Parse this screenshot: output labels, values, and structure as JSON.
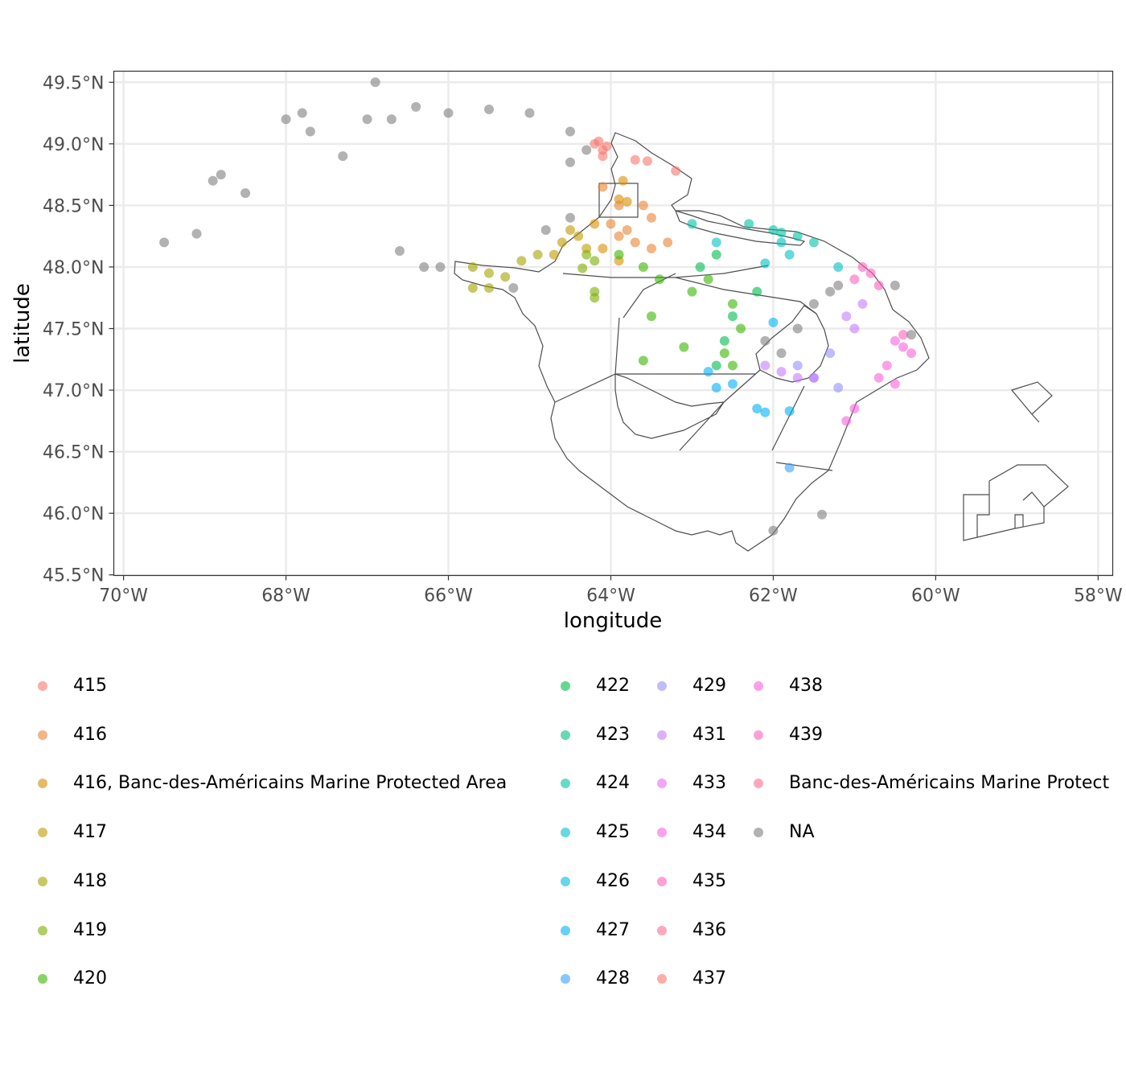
{
  "map": {
    "xlabel": "longitude",
    "ylabel": "latitude",
    "x_ticks": [
      {
        "lon": -70,
        "label": "70°W"
      },
      {
        "lon": -68,
        "label": "68°W"
      },
      {
        "lon": -66,
        "label": "66°W"
      },
      {
        "lon": -64,
        "label": "64°W"
      },
      {
        "lon": -62,
        "label": "62°W"
      },
      {
        "lon": -60,
        "label": "60°W"
      },
      {
        "lon": -58,
        "label": "58°W"
      }
    ],
    "y_ticks": [
      {
        "lat": 49.5,
        "label": "49.5°N"
      },
      {
        "lat": 49.0,
        "label": "49.0°N"
      },
      {
        "lat": 48.5,
        "label": "48.5°N"
      },
      {
        "lat": 48.0,
        "label": "48.0°N"
      },
      {
        "lat": 47.5,
        "label": "47.5°N"
      },
      {
        "lat": 47.0,
        "label": "47.0°N"
      },
      {
        "lat": 46.5,
        "label": "46.5°N"
      },
      {
        "lat": 46.0,
        "label": "46.0°N"
      },
      {
        "lat": 45.5,
        "label": "45.5°N"
      }
    ],
    "xlim": [
      -70.12,
      -57.82
    ],
    "ylim": [
      45.495,
      49.59
    ],
    "panel_background": "#ffffff",
    "grid": true,
    "grid_color": "#ebebeb",
    "outline_color": "#4d4d4d"
  },
  "legend": {
    "placement": "bottom",
    "columns": [
      [
        {
          "label": "415",
          "color": "#F8766D"
        },
        {
          "label": "416",
          "color": "#EA8331"
        },
        {
          "label": "416, Banc-des-Américains Marine Protected Area",
          "color": "#D89000"
        },
        {
          "label": "417",
          "color": "#C09B00"
        },
        {
          "label": "418",
          "color": "#A3A500"
        },
        {
          "label": "419",
          "color": "#7CAE00"
        },
        {
          "label": "420",
          "color": "#39B600"
        }
      ],
      [
        {
          "label": "422",
          "color": "#00BB4E"
        },
        {
          "label": "423",
          "color": "#00BF7D"
        },
        {
          "label": "424",
          "color": "#00C1A3"
        },
        {
          "label": "425",
          "color": "#00BFC4"
        },
        {
          "label": "426",
          "color": "#00BAE0"
        },
        {
          "label": "427",
          "color": "#00B0F6"
        },
        {
          "label": "428",
          "color": "#35A2FF"
        }
      ],
      [
        {
          "label": "429",
          "color": "#9590FF"
        },
        {
          "label": "431",
          "color": "#C77CFF"
        },
        {
          "label": "433",
          "color": "#E76BF3"
        },
        {
          "label": "434",
          "color": "#FA62DB"
        },
        {
          "label": "435",
          "color": "#FF62BC"
        },
        {
          "label": "436",
          "color": "#FF6C91"
        },
        {
          "label": "437",
          "color": "#F8766D"
        }
      ],
      [
        {
          "label": "438",
          "color": "#FA62DB"
        },
        {
          "label": "439",
          "color": "#FF62BC"
        },
        {
          "label": "Banc-des-Américains Marine Protect",
          "color": "#FF6C91"
        },
        {
          "label": "NA",
          "color": "#7F7F7F"
        }
      ]
    ]
  },
  "chart_data": {
    "type": "scatter",
    "xlabel": "longitude",
    "ylabel": "latitude",
    "xlim": [
      -70.12,
      -57.82
    ],
    "ylim": [
      45.495,
      49.59
    ],
    "grid": true,
    "legend_position": "bottom",
    "series": [
      {
        "name": "415",
        "color": "#F8766D",
        "points": [
          [
            -64.2,
            49.0
          ],
          [
            -64.1,
            48.95
          ],
          [
            -64.15,
            49.02
          ],
          [
            -63.7,
            48.87
          ],
          [
            -63.55,
            48.86
          ],
          [
            -63.2,
            48.78
          ],
          [
            -64.1,
            48.9
          ],
          [
            -64.05,
            48.98
          ]
        ]
      },
      {
        "name": "416",
        "color": "#EA8331",
        "points": [
          [
            -64.1,
            48.65
          ],
          [
            -63.9,
            48.5
          ],
          [
            -63.6,
            48.5
          ],
          [
            -63.5,
            48.4
          ],
          [
            -63.8,
            48.3
          ],
          [
            -63.7,
            48.2
          ],
          [
            -63.9,
            48.25
          ],
          [
            -63.5,
            48.15
          ],
          [
            -63.3,
            48.2
          ],
          [
            -64.0,
            48.35
          ]
        ]
      },
      {
        "name": "416, Banc-des-Américains Marine Protected Area",
        "color": "#D89000",
        "points": [
          [
            -63.9,
            48.55
          ],
          [
            -63.8,
            48.53
          ],
          [
            -63.85,
            48.7
          ],
          [
            -64.2,
            48.35
          ],
          [
            -63.9,
            48.05
          ],
          [
            -64.1,
            48.15
          ]
        ]
      },
      {
        "name": "417",
        "color": "#C09B00",
        "points": [
          [
            -64.6,
            48.2
          ],
          [
            -64.4,
            48.25
          ],
          [
            -64.5,
            48.3
          ],
          [
            -64.7,
            48.1
          ],
          [
            -64.3,
            48.15
          ]
        ]
      },
      {
        "name": "418",
        "color": "#A3A500",
        "points": [
          [
            -65.7,
            48.0
          ],
          [
            -65.5,
            47.95
          ],
          [
            -65.3,
            47.92
          ],
          [
            -65.7,
            47.83
          ],
          [
            -65.5,
            47.83
          ],
          [
            -64.9,
            48.1
          ],
          [
            -65.1,
            48.05
          ]
        ]
      },
      {
        "name": "419",
        "color": "#7CAE00",
        "points": [
          [
            -64.3,
            48.1
          ],
          [
            -64.2,
            48.05
          ],
          [
            -64.35,
            47.99
          ],
          [
            -64.2,
            47.8
          ],
          [
            -64.2,
            47.75
          ]
        ]
      },
      {
        "name": "420",
        "color": "#39B600",
        "points": [
          [
            -63.9,
            48.1
          ],
          [
            -63.6,
            48.0
          ],
          [
            -63.4,
            47.9
          ],
          [
            -63.0,
            47.8
          ],
          [
            -62.8,
            47.9
          ],
          [
            -62.5,
            47.7
          ],
          [
            -62.6,
            47.3
          ],
          [
            -62.5,
            47.2
          ],
          [
            -62.4,
            47.5
          ],
          [
            -63.1,
            47.35
          ],
          [
            -63.6,
            47.24
          ],
          [
            -63.5,
            47.6
          ]
        ]
      },
      {
        "name": "422",
        "color": "#00BB4E",
        "points": [
          [
            -62.9,
            48.0
          ],
          [
            -62.7,
            48.1
          ],
          [
            -62.5,
            47.6
          ],
          [
            -62.2,
            47.8
          ],
          [
            -62.6,
            47.4
          ],
          [
            -62.7,
            47.2
          ]
        ]
      },
      {
        "name": "424",
        "color": "#00C1A3",
        "points": [
          [
            -62.0,
            48.3
          ],
          [
            -61.9,
            48.28
          ],
          [
            -61.7,
            48.25
          ],
          [
            -61.5,
            48.2
          ],
          [
            -63.0,
            48.35
          ],
          [
            -62.3,
            48.35
          ]
        ]
      },
      {
        "name": "425",
        "color": "#00BFC4",
        "points": [
          [
            -61.9,
            48.2
          ],
          [
            -61.8,
            48.1
          ],
          [
            -62.1,
            48.03
          ],
          [
            -61.2,
            48.0
          ],
          [
            -62.7,
            48.2
          ]
        ]
      },
      {
        "name": "427",
        "color": "#00B0F6",
        "points": [
          [
            -62.8,
            47.15
          ],
          [
            -62.7,
            47.02
          ],
          [
            -62.5,
            47.05
          ],
          [
            -62.2,
            46.85
          ],
          [
            -62.1,
            46.82
          ],
          [
            -61.8,
            46.83
          ],
          [
            -62.0,
            47.55
          ]
        ]
      },
      {
        "name": "428",
        "color": "#35A2FF",
        "points": [
          [
            -61.8,
            46.37
          ]
        ]
      },
      {
        "name": "429",
        "color": "#9590FF",
        "points": [
          [
            -61.7,
            47.2
          ],
          [
            -61.5,
            47.1
          ],
          [
            -61.2,
            47.02
          ],
          [
            -61.3,
            47.3
          ]
        ]
      },
      {
        "name": "431",
        "color": "#C77CFF",
        "points": [
          [
            -62.1,
            47.2
          ],
          [
            -61.9,
            47.15
          ],
          [
            -61.7,
            47.1
          ],
          [
            -61.5,
            47.1
          ],
          [
            -61.1,
            47.6
          ],
          [
            -60.9,
            47.7
          ],
          [
            -61.0,
            47.5
          ]
        ]
      },
      {
        "name": "434",
        "color": "#FA62DB",
        "points": [
          [
            -60.5,
            47.4
          ],
          [
            -60.4,
            47.35
          ],
          [
            -60.3,
            47.3
          ],
          [
            -60.6,
            47.2
          ],
          [
            -60.7,
            47.1
          ],
          [
            -60.5,
            47.05
          ],
          [
            -61.0,
            46.85
          ],
          [
            -61.1,
            46.75
          ]
        ]
      },
      {
        "name": "435",
        "color": "#FF62BC",
        "points": [
          [
            -60.9,
            48.0
          ],
          [
            -60.8,
            47.95
          ],
          [
            -60.7,
            47.85
          ],
          [
            -61.0,
            47.9
          ],
          [
            -60.4,
            47.45
          ]
        ]
      },
      {
        "name": "NA",
        "color": "#7F7F7F",
        "points": [
          [
            -69.5,
            48.2
          ],
          [
            -69.1,
            48.27
          ],
          [
            -68.9,
            48.7
          ],
          [
            -68.8,
            48.75
          ],
          [
            -68.5,
            48.6
          ],
          [
            -68.0,
            49.2
          ],
          [
            -67.8,
            49.25
          ],
          [
            -67.7,
            49.1
          ],
          [
            -67.3,
            48.9
          ],
          [
            -67.0,
            49.2
          ],
          [
            -66.9,
            49.5
          ],
          [
            -66.7,
            49.2
          ],
          [
            -66.4,
            49.3
          ],
          [
            -66.0,
            49.25
          ],
          [
            -65.5,
            49.28
          ],
          [
            -65.0,
            49.25
          ],
          [
            -64.5,
            49.1
          ],
          [
            -64.3,
            48.95
          ],
          [
            -64.5,
            48.85
          ],
          [
            -66.1,
            48.0
          ],
          [
            -66.3,
            48.0
          ],
          [
            -66.6,
            48.13
          ],
          [
            -65.2,
            47.83
          ],
          [
            -64.8,
            48.3
          ],
          [
            -64.5,
            48.4
          ],
          [
            -62.1,
            47.4
          ],
          [
            -61.9,
            47.3
          ],
          [
            -61.7,
            47.5
          ],
          [
            -61.5,
            47.7
          ],
          [
            -61.3,
            47.8
          ],
          [
            -61.2,
            47.85
          ],
          [
            -60.5,
            47.85
          ],
          [
            -61.4,
            45.99
          ],
          [
            -62.0,
            45.86
          ],
          [
            -60.3,
            47.45
          ]
        ]
      }
    ]
  }
}
